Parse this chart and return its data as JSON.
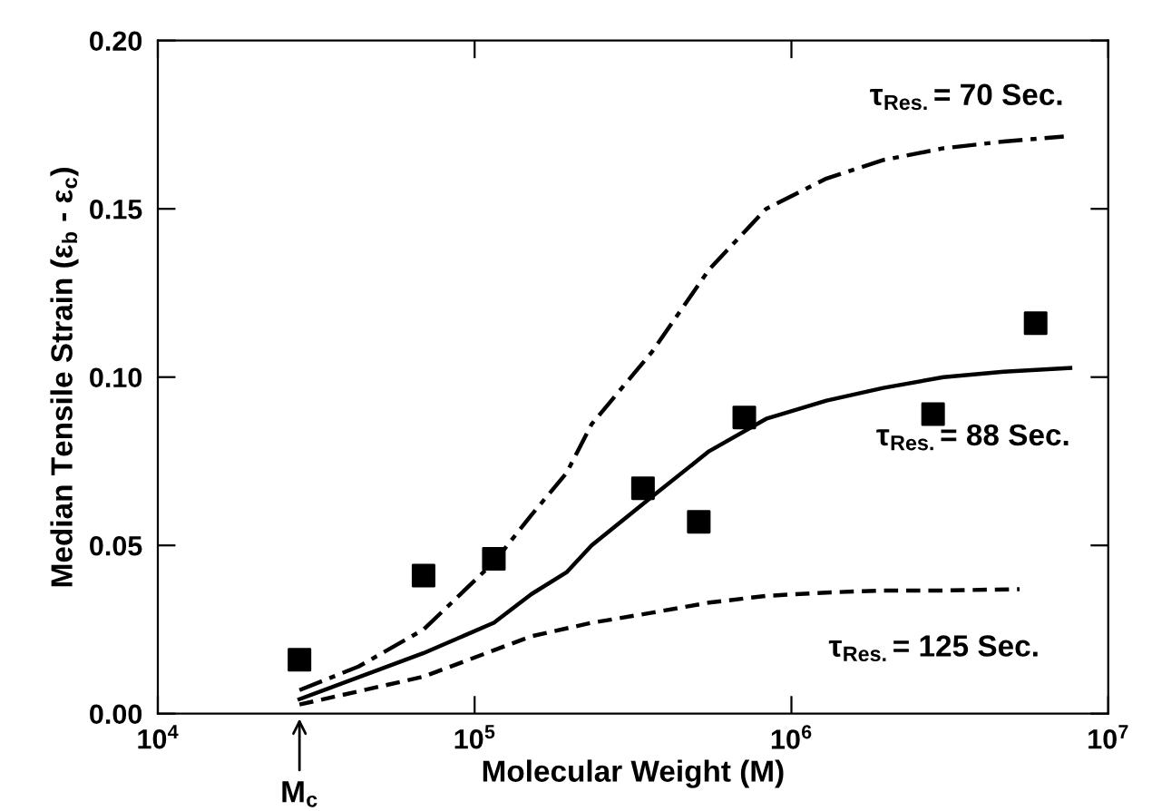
{
  "chart_data": {
    "type": "line",
    "xlabel": "Molecular Weight (M)",
    "ylabel": "Median Tensile Strain (ε$_{b}$ - ε$_{c}$)",
    "log": "x",
    "xlim": [
      10000,
      10000000
    ],
    "ylim": [
      0,
      0.2
    ],
    "xticks": [
      {
        "value": 10000,
        "label": "10$^{4}$"
      },
      {
        "value": 100000,
        "label": "10$^{5}$"
      },
      {
        "value": 1000000,
        "label": "10$^{6}$"
      },
      {
        "value": 10000000,
        "label": "10$^{7}$"
      }
    ],
    "yticks": [
      {
        "value": 0,
        "label": "0.00"
      },
      {
        "value": 0.05,
        "label": "0.05"
      },
      {
        "value": 0.1,
        "label": "0.10"
      },
      {
        "value": 0.15,
        "label": "0.15"
      },
      {
        "value": 0.2,
        "label": "0.20"
      }
    ],
    "grid": false,
    "legend": false,
    "series": [
      {
        "name": "τ$_{Res.}$= 70 Sec.",
        "line_style": "dashdot",
        "color": "#000000",
        "x": [
          28000,
          43000,
          69000,
          115000,
          151000,
          195000,
          234000,
          363000,
          550000,
          832000,
          1290000,
          1950000,
          3020000,
          4680000,
          7240000
        ],
        "values": [
          0.007,
          0.014,
          0.025,
          0.045,
          0.059,
          0.0715,
          0.086,
          0.1075,
          0.132,
          0.15,
          0.159,
          0.1645,
          0.168,
          0.17,
          0.1715
        ]
      },
      {
        "name": "τ$_{Res.}$= 88 Sec.",
        "line_style": "solid",
        "color": "#000000",
        "x": [
          28000,
          69000,
          115000,
          151000,
          195000,
          234000,
          363000,
          550000,
          832000,
          1290000,
          1950000,
          3020000,
          4680000,
          7590000
        ],
        "values": [
          0.0043,
          0.018,
          0.027,
          0.0355,
          0.042,
          0.05,
          0.0645,
          0.078,
          0.0876,
          0.093,
          0.0968,
          0.1,
          0.1016,
          0.1027
        ]
      },
      {
        "name": "τ$_{Res.}$= 125 Sec.",
        "line_style": "dashed",
        "color": "#000000",
        "x": [
          28000,
          69000,
          151000,
          234000,
          363000,
          550000,
          832000,
          1290000,
          1950000,
          3020000,
          5250000
        ],
        "values": [
          0.0027,
          0.011,
          0.023,
          0.027,
          0.03,
          0.033,
          0.035,
          0.036,
          0.0366,
          0.0366,
          0.037
        ]
      },
      {
        "type": "scatter",
        "marker": "square",
        "color": "#000000",
        "x": [
          28000,
          69000,
          115000,
          340000,
          510000,
          710000,
          2800000,
          5900000
        ],
        "values": [
          0.016,
          0.041,
          0.046,
          0.067,
          0.057,
          0.088,
          0.089,
          0.116
        ]
      }
    ],
    "annotations": [
      "M$_{c}$"
    ]
  }
}
